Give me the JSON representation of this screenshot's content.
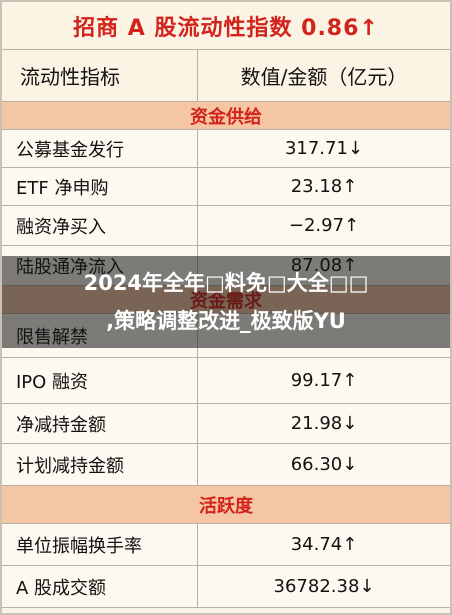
{
  "title": "招商 A 股流动性指数 0.86↑",
  "header": [
    "流动性指标",
    "数值/金额（亿元）"
  ],
  "rows": [
    {
      "section": "资金供给"
    },
    {
      "label": "公募基金发行",
      "value": "317.71↓"
    },
    {
      "label": "ETF 净申购",
      "value": "23.18↑"
    },
    {
      "label": "融资净买入",
      "value": "−2.97↑"
    },
    {
      "label": "陆股通净流入",
      "value": "87.08↑"
    },
    {
      "section": "资金需求"
    },
    {
      "label": "限售解禁"
    },
    {
      "label": "IPO 融资",
      "value": "99.17↑"
    },
    {
      "label": "净减持金额",
      "value": "21.98↓"
    },
    {
      "label": "计划减持金额",
      "value": "66.30↓"
    },
    {
      "section": "活跃度"
    },
    {
      "label": "单位振幅换手率",
      "value": "34.74↑"
    },
    {
      "label": "A 股成交额",
      "value": "36782.38↓"
    }
  ],
  "overlay": {
    "line1": "2024年全年□料免□大全□□",
    "line2": ",策略调整改进_极致版YU"
  }
}
